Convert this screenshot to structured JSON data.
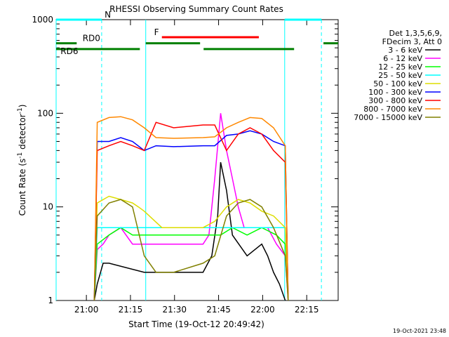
{
  "chart_data": {
    "type": "line",
    "title": "RHESSI Observing Summary Count Rates",
    "xlabel": "Start Time (19-Oct-12 20:49:42)",
    "ylabel_main": "Count Rate (s",
    "ylabel_sup1": "-1",
    "ylabel_mid": " detector",
    "ylabel_sup2": "-1",
    "ylabel_end": ")",
    "y_scale": "log",
    "ylim": [
      1,
      1000
    ],
    "xlim_minutes": [
      0,
      96
    ],
    "x_ticks": [
      {
        "label": "21:00",
        "min": 10.3
      },
      {
        "label": "21:15",
        "min": 25.3
      },
      {
        "label": "21:30",
        "min": 40.3
      },
      {
        "label": "21:45",
        "min": 55.3
      },
      {
        "label": "22:00",
        "min": 70.3
      },
      {
        "label": "22:15",
        "min": 85.3
      }
    ],
    "y_ticks": [
      {
        "label": "1",
        "value": 1
      },
      {
        "label": "10",
        "value": 10
      },
      {
        "label": "100",
        "value": 100
      },
      {
        "label": "1000",
        "value": 1000
      }
    ],
    "legend_header": [
      "Det 1,3,5,6,9,",
      "FDecim 3, Att 0"
    ],
    "legend_position": "right",
    "series": [
      {
        "name": "3 - 6 keV",
        "color": "#000000",
        "points": [
          [
            13,
            1
          ],
          [
            14,
            1.5
          ],
          [
            16,
            2.5
          ],
          [
            18,
            2.5
          ],
          [
            30,
            2
          ],
          [
            40,
            2
          ],
          [
            50,
            2
          ],
          [
            53,
            3
          ],
          [
            55,
            8
          ],
          [
            56,
            30
          ],
          [
            58,
            15
          ],
          [
            60,
            5
          ],
          [
            65,
            3
          ],
          [
            70,
            4
          ],
          [
            72,
            3
          ],
          [
            74,
            2
          ],
          [
            76,
            1.5
          ],
          [
            78,
            1
          ]
        ]
      },
      {
        "name": "6 - 12 keV",
        "color": "#ff00ff",
        "points": [
          [
            13,
            1
          ],
          [
            14,
            3.5
          ],
          [
            16,
            4
          ],
          [
            18,
            5
          ],
          [
            22,
            6
          ],
          [
            26,
            4
          ],
          [
            30,
            4
          ],
          [
            40,
            4
          ],
          [
            50,
            4
          ],
          [
            52,
            5
          ],
          [
            54,
            20
          ],
          [
            56,
            100
          ],
          [
            58,
            40
          ],
          [
            60,
            20
          ],
          [
            62,
            10
          ],
          [
            64,
            6
          ],
          [
            68,
            6
          ],
          [
            72,
            6
          ],
          [
            75,
            4
          ],
          [
            78,
            3
          ],
          [
            79,
            1
          ]
        ]
      },
      {
        "name": "12 - 25 keV",
        "color": "#00ff00",
        "points": [
          [
            13,
            1
          ],
          [
            14,
            4
          ],
          [
            18,
            5
          ],
          [
            22,
            6
          ],
          [
            26,
            5
          ],
          [
            30,
            5
          ],
          [
            40,
            5
          ],
          [
            50,
            5
          ],
          [
            56,
            5
          ],
          [
            60,
            6
          ],
          [
            65,
            5
          ],
          [
            70,
            6
          ],
          [
            75,
            5
          ],
          [
            78,
            4
          ],
          [
            79,
            1
          ]
        ]
      },
      {
        "name": "25 - 50 keV",
        "color": "#00ffff",
        "points": [
          [
            13,
            1
          ],
          [
            14,
            6
          ],
          [
            18,
            6
          ],
          [
            22,
            6
          ],
          [
            26,
            6
          ],
          [
            30,
            6
          ],
          [
            40,
            6
          ],
          [
            50,
            6
          ],
          [
            56,
            6
          ],
          [
            60,
            6
          ],
          [
            65,
            6
          ],
          [
            70,
            6
          ],
          [
            75,
            6
          ],
          [
            78,
            6
          ],
          [
            79,
            1
          ]
        ]
      },
      {
        "name": "50 - 100 keV",
        "color": "#dddd00",
        "points": [
          [
            13,
            1
          ],
          [
            14,
            11
          ],
          [
            18,
            13
          ],
          [
            22,
            12
          ],
          [
            26,
            11
          ],
          [
            28,
            10
          ],
          [
            30,
            9
          ],
          [
            36,
            6
          ],
          [
            38,
            6
          ],
          [
            46,
            6
          ],
          [
            50,
            6
          ],
          [
            54,
            7
          ],
          [
            58,
            10
          ],
          [
            62,
            12
          ],
          [
            66,
            11
          ],
          [
            70,
            9
          ],
          [
            74,
            8
          ],
          [
            78,
            6
          ],
          [
            79,
            1
          ]
        ]
      },
      {
        "name": "100 - 300 keV",
        "color": "#0000ff",
        "points": [
          [
            13,
            1
          ],
          [
            14,
            50
          ],
          [
            18,
            50
          ],
          [
            22,
            55
          ],
          [
            26,
            50
          ],
          [
            30,
            40
          ],
          [
            34,
            45
          ],
          [
            40,
            44
          ],
          [
            50,
            45
          ],
          [
            54,
            45
          ],
          [
            58,
            58
          ],
          [
            62,
            60
          ],
          [
            66,
            65
          ],
          [
            70,
            60
          ],
          [
            74,
            50
          ],
          [
            78,
            45
          ],
          [
            79,
            1
          ]
        ]
      },
      {
        "name": "300 - 800 keV",
        "color": "#ff0000",
        "points": [
          [
            13,
            1
          ],
          [
            14,
            40
          ],
          [
            18,
            45
          ],
          [
            22,
            50
          ],
          [
            26,
            45
          ],
          [
            30,
            40
          ],
          [
            34,
            80
          ],
          [
            40,
            70
          ],
          [
            50,
            75
          ],
          [
            54,
            75
          ],
          [
            58,
            40
          ],
          [
            62,
            60
          ],
          [
            66,
            70
          ],
          [
            70,
            60
          ],
          [
            74,
            40
          ],
          [
            78,
            30
          ],
          [
            79,
            1
          ]
        ]
      },
      {
        "name": "800 - 7000 keV",
        "color": "#ff8800",
        "points": [
          [
            13,
            1
          ],
          [
            14,
            80
          ],
          [
            18,
            90
          ],
          [
            22,
            92
          ],
          [
            26,
            85
          ],
          [
            30,
            70
          ],
          [
            34,
            55
          ],
          [
            40,
            54
          ],
          [
            50,
            55
          ],
          [
            54,
            56
          ],
          [
            58,
            70
          ],
          [
            62,
            80
          ],
          [
            66,
            90
          ],
          [
            70,
            88
          ],
          [
            74,
            70
          ],
          [
            78,
            45
          ],
          [
            79,
            1
          ]
        ]
      },
      {
        "name": "7000 - 15000 keV",
        "color": "#808000",
        "points": [
          [
            13,
            1
          ],
          [
            14,
            8
          ],
          [
            18,
            11
          ],
          [
            22,
            12
          ],
          [
            26,
            10
          ],
          [
            30,
            3
          ],
          [
            34,
            2
          ],
          [
            40,
            2
          ],
          [
            50,
            2.5
          ],
          [
            54,
            3
          ],
          [
            58,
            8
          ],
          [
            62,
            11
          ],
          [
            66,
            12
          ],
          [
            70,
            10
          ],
          [
            74,
            6
          ],
          [
            78,
            3
          ],
          [
            79,
            1
          ]
        ]
      }
    ],
    "cyan_vertical_lines": [
      {
        "min": 0,
        "style": "solid"
      },
      {
        "min": 15.5,
        "style": "dashed"
      },
      {
        "min": 30.5,
        "style": "solid"
      },
      {
        "min": 77.8,
        "style": "solid"
      },
      {
        "min": 90.3,
        "style": "dashed"
      }
    ],
    "status_bars": [
      {
        "label": "N",
        "color": "#00ffff",
        "row": 1000,
        "segments": [
          [
            0,
            15.5
          ],
          [
            77.8,
            90.3
          ]
        ]
      },
      {
        "label": "F",
        "color": "#ff0000",
        "row": 650,
        "segments": [
          [
            36,
            69
          ]
        ]
      },
      {
        "label": "RD0",
        "color": "#008000",
        "row": 560,
        "segments": [
          [
            0,
            7
          ],
          [
            30.5,
            49
          ],
          [
            91,
            96
          ]
        ]
      },
      {
        "label": "RD6",
        "color": "#008000",
        "row": 485,
        "segments": [
          [
            0,
            28.5
          ],
          [
            50.2,
            81
          ]
        ]
      }
    ],
    "footer_date": "19-Oct-2021 23:48"
  }
}
